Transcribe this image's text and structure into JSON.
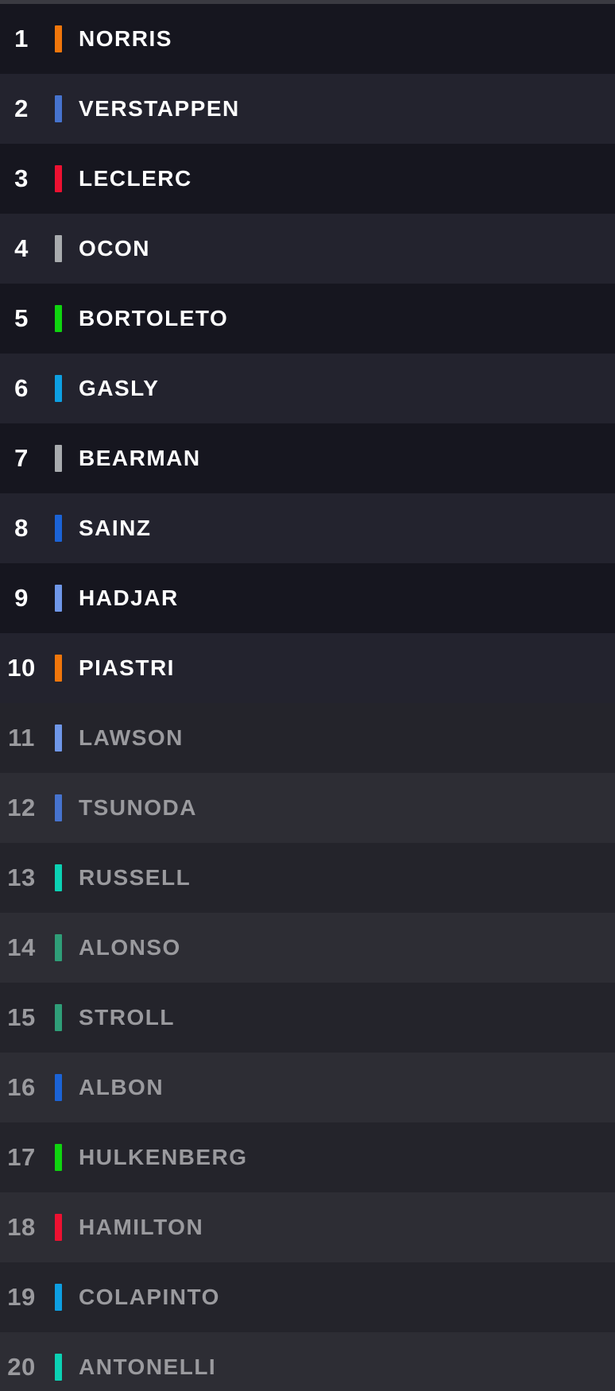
{
  "palette": {
    "top_strip": "#3A3A41",
    "row_dark_top": "#16161F",
    "row_light_top": "#23232E",
    "row_dark_bottom": "#24242B",
    "row_light_bottom": "#2D2D34",
    "text_active": "#FFFFFF",
    "text_inactive": "#9A9A9E"
  },
  "standings": {
    "rows": [
      {
        "position": "1",
        "driver": "NORRIS",
        "team": "mclaren",
        "team_color": "#F0760B",
        "status": "active"
      },
      {
        "position": "2",
        "driver": "VERSTAPPEN",
        "team": "red-bull",
        "team_color": "#4673CE",
        "status": "active"
      },
      {
        "position": "3",
        "driver": "LECLERC",
        "team": "ferrari",
        "team_color": "#ED1131",
        "status": "active"
      },
      {
        "position": "4",
        "driver": "OCON",
        "team": "haas",
        "team_color": "#A8ABAE",
        "status": "active"
      },
      {
        "position": "5",
        "driver": "BORTOLETO",
        "team": "kick-sauber",
        "team_color": "#0FD40F",
        "status": "active"
      },
      {
        "position": "6",
        "driver": "GASLY",
        "team": "alpine",
        "team_color": "#0D9FE2",
        "status": "active"
      },
      {
        "position": "7",
        "driver": "BEARMAN",
        "team": "haas",
        "team_color": "#A8ABAE",
        "status": "active"
      },
      {
        "position": "8",
        "driver": "SAINZ",
        "team": "williams",
        "team_color": "#1B63D6",
        "status": "active"
      },
      {
        "position": "9",
        "driver": "HADJAR",
        "team": "racing-bulls",
        "team_color": "#6F97E8",
        "status": "active"
      },
      {
        "position": "10",
        "driver": "PIASTRI",
        "team": "mclaren",
        "team_color": "#F0760B",
        "status": "active"
      },
      {
        "position": "11",
        "driver": "LAWSON",
        "team": "racing-bulls",
        "team_color": "#6F97E8",
        "status": "inactive"
      },
      {
        "position": "12",
        "driver": "TSUNODA",
        "team": "red-bull",
        "team_color": "#4673CE",
        "status": "inactive"
      },
      {
        "position": "13",
        "driver": "RUSSELL",
        "team": "mercedes",
        "team_color": "#0BD2B4",
        "status": "inactive"
      },
      {
        "position": "14",
        "driver": "ALONSO",
        "team": "aston-martin",
        "team_color": "#2F9E78",
        "status": "inactive"
      },
      {
        "position": "15",
        "driver": "STROLL",
        "team": "aston-martin",
        "team_color": "#2F9E78",
        "status": "inactive"
      },
      {
        "position": "16",
        "driver": "ALBON",
        "team": "williams",
        "team_color": "#1B63D6",
        "status": "inactive"
      },
      {
        "position": "17",
        "driver": "HULKENBERG",
        "team": "kick-sauber",
        "team_color": "#0FD40F",
        "status": "inactive"
      },
      {
        "position": "18",
        "driver": "HAMILTON",
        "team": "ferrari",
        "team_color": "#ED1131",
        "status": "inactive"
      },
      {
        "position": "19",
        "driver": "COLAPINTO",
        "team": "alpine",
        "team_color": "#0D9FE2",
        "status": "inactive"
      },
      {
        "position": "20",
        "driver": "ANTONELLI",
        "team": "mercedes",
        "team_color": "#0BD2B4",
        "status": "inactive"
      }
    ]
  }
}
